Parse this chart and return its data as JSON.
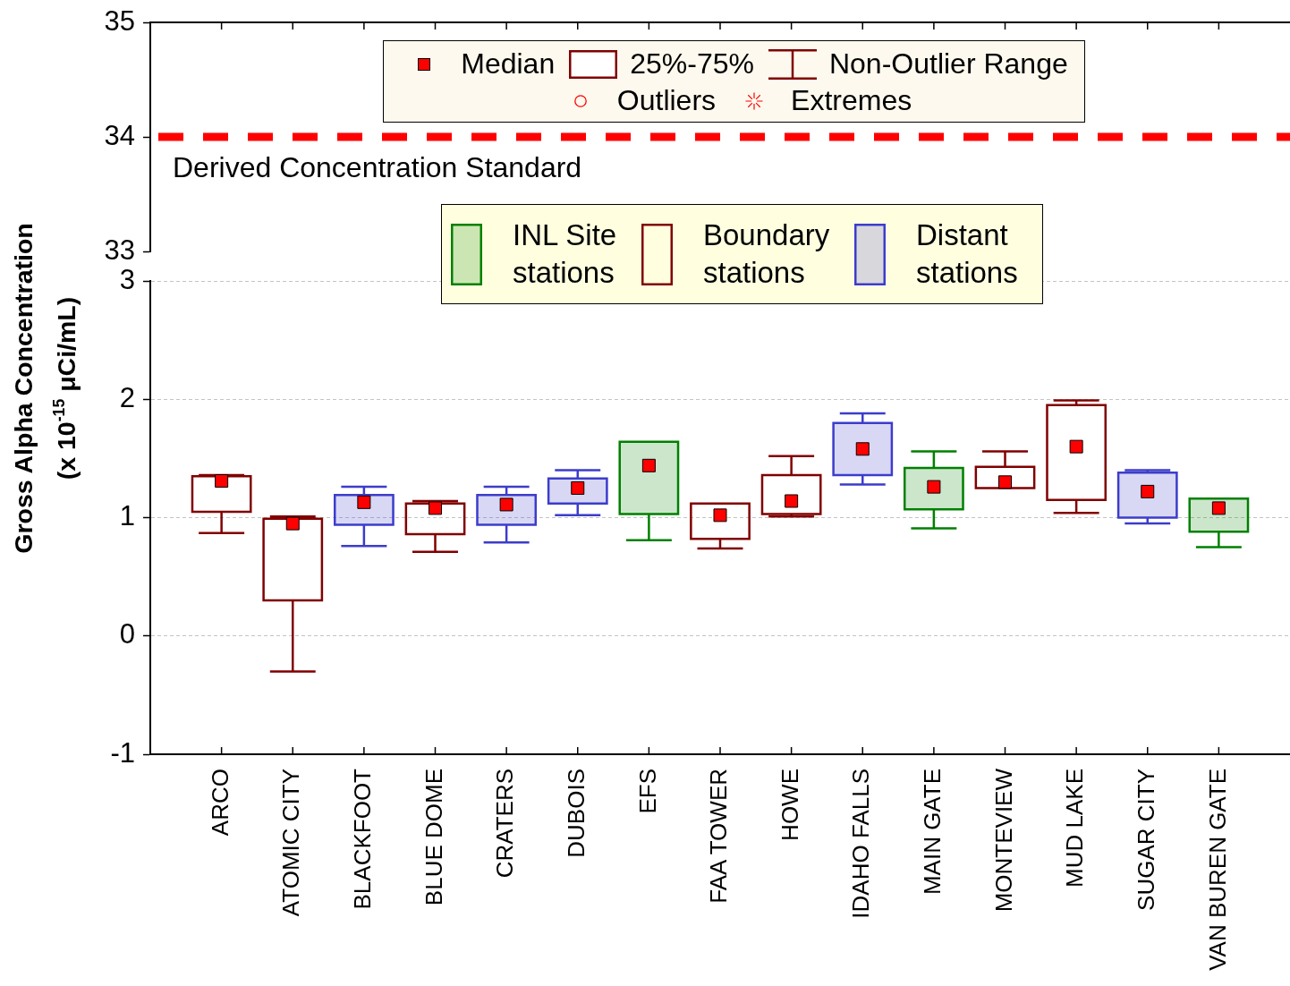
{
  "chart_data": [
    {
      "type": "box",
      "categories": [
        null,
        null,
        null,
        null,
        null,
        null,
        null,
        null,
        null,
        null,
        null,
        null,
        null,
        null,
        null
      ],
      "ylim": [
        33,
        35
      ],
      "yticks": [
        33,
        34,
        35
      ],
      "tick_labels": "y",
      "ref_lines": [
        {
          "axis": "y",
          "value": 34,
          "label": "Derived Concentration Standard",
          "color": "#ff0000",
          "line_style": "dashed"
        }
      ],
      "annotations": [
        "Median",
        "25%-75%",
        "Non-Outlier Range",
        "Outliers",
        "Extremes"
      ]
    },
    {
      "type": "box",
      "categories": [
        "ARCO",
        "ATOMIC CITY",
        "BLACKFOOT",
        "BLUE DOME",
        "CRATERS",
        "DUBOIS",
        "EFS",
        "FAA TOWER",
        "HOWE",
        "IDAHO FALLS",
        "MAIN GATE",
        "MONTEVIEW",
        "MUD LAKE",
        "SUGAR CITY",
        "VAN BUREN GATE"
      ],
      "ylabel": "Gross Alpha Concentration (x 10$^{-15}$ μCi/mL)",
      "ylim": [
        -1,
        3
      ],
      "yticks": [
        -1,
        0,
        1,
        2,
        3
      ],
      "grid": "y",
      "legend": "top",
      "marker": "square",
      "series": [
        {
          "name": "INL Site stations",
          "color": "#008000",
          "boxes": [
            null,
            null,
            null,
            null,
            null,
            null,
            {
              "low": 0.81,
              "q1": 1.03,
              "median": 1.44,
              "q3": 1.64,
              "high": 1.64
            },
            null,
            null,
            null,
            {
              "low": 0.91,
              "q1": 1.07,
              "median": 1.26,
              "q3": 1.42,
              "high": 1.56
            },
            null,
            null,
            null,
            {
              "low": 0.75,
              "q1": 0.88,
              "median": 1.08,
              "q3": 1.16,
              "high": 1.16
            }
          ]
        },
        {
          "name": "Boundary stations",
          "color": "#800000",
          "boxes": [
            {
              "low": 0.87,
              "q1": 1.05,
              "median": 1.31,
              "q3": 1.35,
              "high": 1.36
            },
            {
              "low": -0.3,
              "q1": 0.3,
              "median": 0.95,
              "q3": 0.99,
              "high": 1.01
            },
            null,
            {
              "low": 0.71,
              "q1": 0.86,
              "median": 1.08,
              "q3": 1.12,
              "high": 1.14
            },
            null,
            null,
            null,
            {
              "low": 0.74,
              "q1": 0.82,
              "median": 1.02,
              "q3": 1.12,
              "high": 1.12
            },
            {
              "low": 1.01,
              "q1": 1.03,
              "median": 1.14,
              "q3": 1.36,
              "high": 1.52
            },
            null,
            null,
            {
              "low": 1.25,
              "q1": 1.25,
              "median": 1.3,
              "q3": 1.43,
              "high": 1.56
            },
            {
              "low": 1.04,
              "q1": 1.15,
              "median": 1.6,
              "q3": 1.95,
              "high": 1.99
            },
            null,
            null
          ]
        },
        {
          "name": "Distant stations",
          "color": "#3c3ccc",
          "boxes": [
            null,
            null,
            {
              "low": 0.76,
              "q1": 0.94,
              "median": 1.13,
              "q3": 1.19,
              "high": 1.26
            },
            null,
            {
              "low": 0.79,
              "q1": 0.94,
              "median": 1.11,
              "q3": 1.19,
              "high": 1.26
            },
            {
              "low": 1.02,
              "q1": 1.12,
              "median": 1.25,
              "q3": 1.33,
              "high": 1.4
            },
            null,
            null,
            null,
            {
              "low": 1.28,
              "q1": 1.36,
              "median": 1.58,
              "q3": 1.8,
              "high": 1.88
            },
            null,
            null,
            null,
            {
              "low": 0.95,
              "q1": 1.0,
              "median": 1.22,
              "q3": 1.38,
              "high": 1.4
            },
            null
          ]
        }
      ]
    }
  ]
}
